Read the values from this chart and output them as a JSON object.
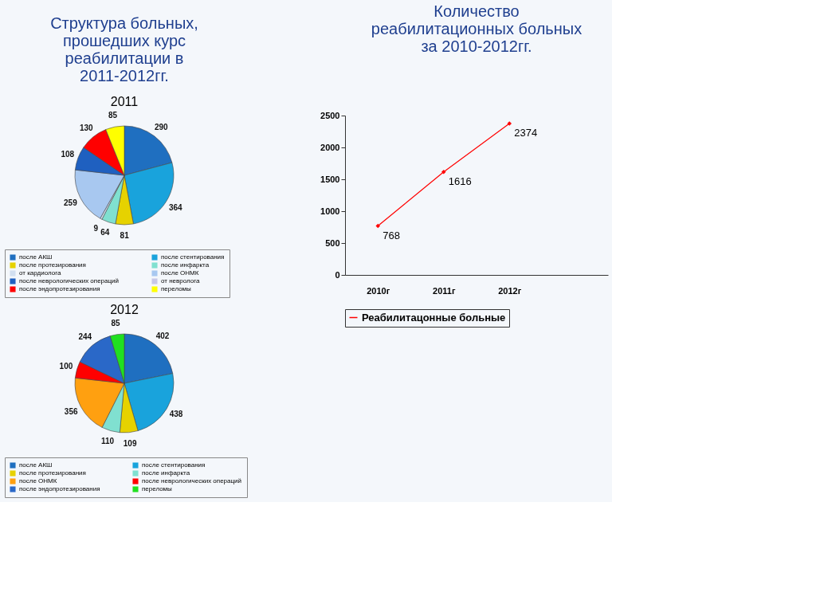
{
  "chart_data": [
    {
      "type": "pie",
      "title": "Структура больных, прошедших курс реабилитации в 2011-2012гг.",
      "subtitle": "2011",
      "categories": [
        "после АКШ",
        "после стентирования",
        "после протезирования",
        "после инфаркта",
        "от кардиолога",
        "после ОНМК",
        "после неврологических операций",
        "от невролога",
        "после эндопротезирования",
        "переломы"
      ],
      "values": [
        290,
        364,
        81,
        64,
        9,
        259,
        108,
        null,
        130,
        85
      ],
      "colors": [
        "#1f6fc0",
        "#19a3dc",
        "#e6d200",
        "#80e0d0",
        "#d2dff0",
        "#a8c8f0",
        "#1f60c0",
        "#c8c8e8",
        "#ff0000",
        "#ffff00"
      ],
      "data_labels": true,
      "legend": "bottom"
    },
    {
      "type": "pie",
      "title": "2012",
      "categories": [
        "после АКШ",
        "после стентирования",
        "после протезирования",
        "после инфаркта",
        "после ОНМК",
        "после неврологических операций",
        "после эндопротезирования",
        "переломы"
      ],
      "values": [
        402,
        438,
        109,
        110,
        356,
        100,
        244,
        85
      ],
      "colors": [
        "#1f6fc0",
        "#19a3dc",
        "#e6d200",
        "#80e0d0",
        "#ffa010",
        "#ff0000",
        "#2a68c8",
        "#20e020"
      ],
      "data_labels": true,
      "legend": "bottom"
    },
    {
      "type": "line",
      "title": "Количество реабилитационных больных за 2010-2012гг.",
      "categories": [
        "2010г",
        "2011г",
        "2012г",
        null
      ],
      "series": [
        {
          "name": "Реабилитацонные больные",
          "color": "#ff0000",
          "values": [
            768,
            1616,
            2374,
            null
          ]
        }
      ],
      "ylim": [
        0,
        2500
      ],
      "yticks": [
        0,
        500,
        1000,
        1500,
        2000,
        2500
      ],
      "data_labels": true,
      "marker": "diamond",
      "legend": "bottom",
      "grid": false
    }
  ]
}
